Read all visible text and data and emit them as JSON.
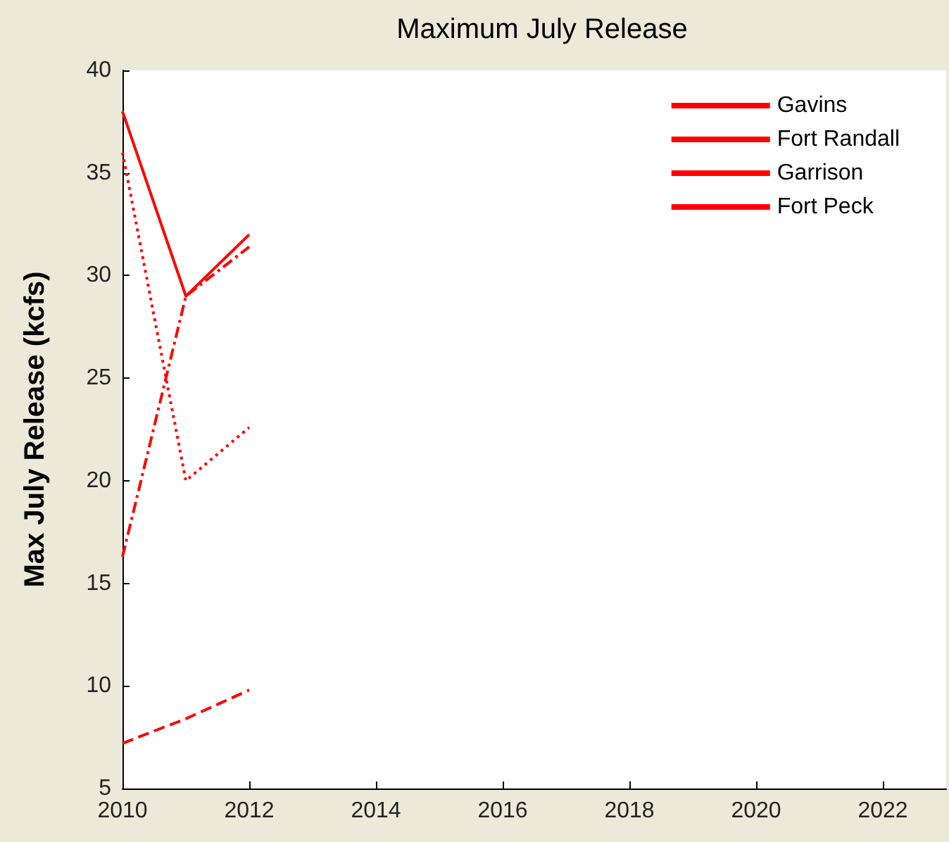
{
  "chart_data": {
    "type": "line",
    "title": "Maximum July Release",
    "ylabel": "Max July Release (kcfs)",
    "xlim": [
      2010,
      2023
    ],
    "xticks": [
      2010,
      2012,
      2014,
      2016,
      2018,
      2020,
      2022
    ],
    "ylim": [
      5,
      40
    ],
    "yticks": [
      5,
      10,
      15,
      20,
      25,
      30,
      35,
      40
    ],
    "x": [
      2010,
      2011,
      2012
    ],
    "grid": false,
    "legend": "top right",
    "marker": "none",
    "series": [
      {
        "name": "Gavins",
        "color": "#ff0000",
        "line_style": "solid",
        "values": [
          38,
          29,
          32
        ]
      },
      {
        "name": "Fort Randall",
        "color": "#ff0000",
        "line_style": "dashdot",
        "values": [
          16.3,
          29,
          31.4
        ]
      },
      {
        "name": "Garrison",
        "color": "#ff0000",
        "line_style": "dotted",
        "values": [
          36,
          20,
          22.6
        ]
      },
      {
        "name": "Fort Peck",
        "color": "#ff0000",
        "line_style": "dashed",
        "values": [
          7.2,
          8.4,
          9.8
        ]
      }
    ]
  }
}
